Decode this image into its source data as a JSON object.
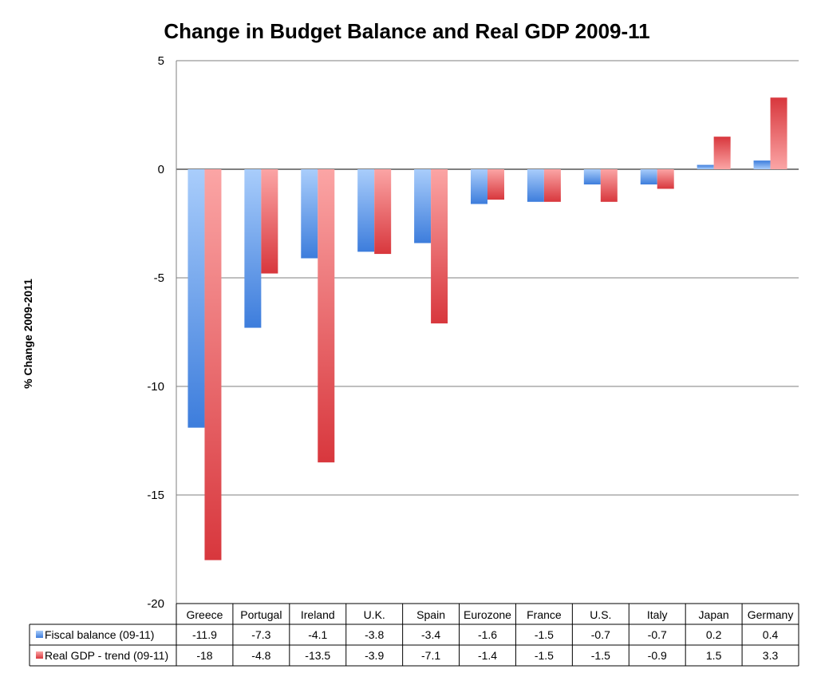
{
  "chart_data": {
    "type": "bar",
    "title": "Change in Budget Balance and Real GDP 2009-11",
    "xlabel": "",
    "ylabel": "% Change 2009-2011",
    "ylim": [
      -20,
      5
    ],
    "yticks": [
      5,
      0,
      -5,
      -10,
      -15,
      -20
    ],
    "grid": true,
    "categories": [
      "Greece",
      "Portugal",
      "Ireland",
      "U.K.",
      "Spain",
      "Eurozone",
      "France",
      "U.S.",
      "Italy",
      "Japan",
      "Germany"
    ],
    "series": [
      {
        "name": "Fiscal balance (09-11)",
        "color": "#4a86e0",
        "values": [
          -11.9,
          -7.3,
          -4.1,
          -3.8,
          -3.4,
          -1.6,
          -1.5,
          -0.7,
          -0.7,
          0.2,
          0.4
        ],
        "labels": [
          "-11.9",
          "-7.3",
          "-4.1",
          "-3.8",
          "-3.4",
          "-1.6",
          "-1.5",
          "-0.7",
          "-0.7",
          "0.2",
          "0.4"
        ]
      },
      {
        "name": "Real GDP - trend (09-11)",
        "color": "#e0454a",
        "values": [
          -18,
          -4.8,
          -13.5,
          -3.9,
          -7.1,
          -1.4,
          -1.5,
          -1.5,
          -0.9,
          1.5,
          3.3
        ],
        "labels": [
          "-18",
          "-4.8",
          "-13.5",
          "-3.9",
          "-7.1",
          "-1.4",
          "-1.5",
          "-1.5",
          "-0.9",
          "1.5",
          "3.3"
        ]
      }
    ]
  }
}
